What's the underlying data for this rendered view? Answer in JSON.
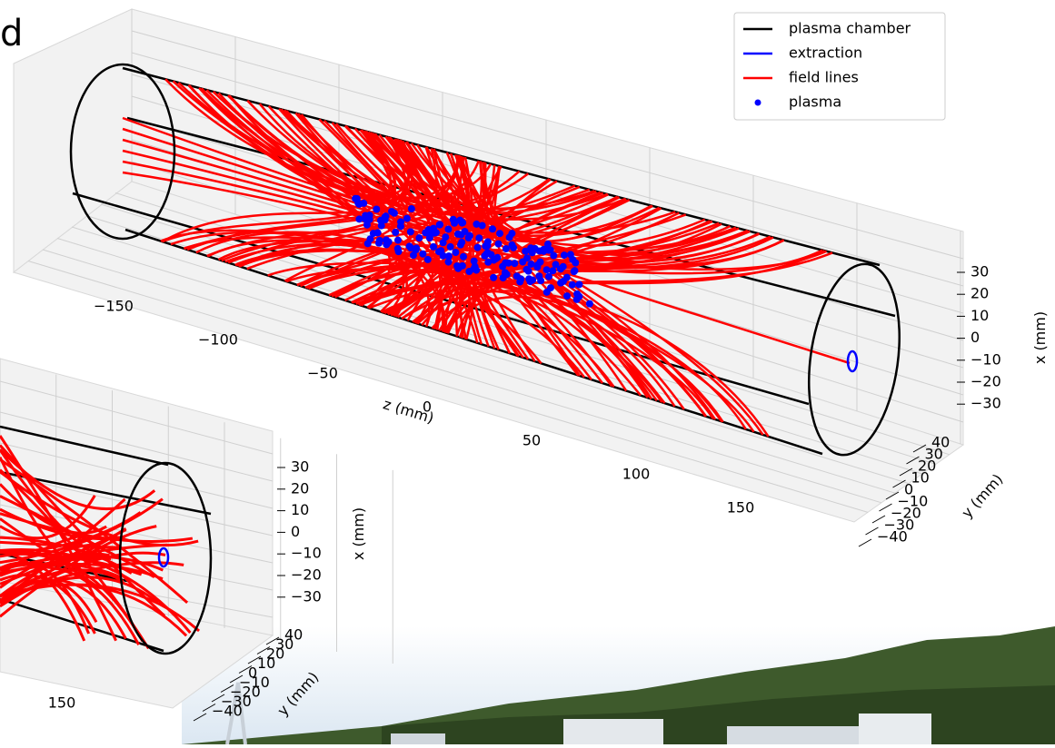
{
  "heading_fragment": "d",
  "main_plot": {
    "legend": [
      {
        "label": "plasma chamber",
        "color": "#000000",
        "kind": "line"
      },
      {
        "label": "extraction",
        "color": "#0000ff",
        "kind": "line"
      },
      {
        "label": "field lines",
        "color": "#ff0000",
        "kind": "line"
      },
      {
        "label": "plasma",
        "color": "#0000ff",
        "kind": "dot"
      }
    ],
    "z_axis": {
      "label": "z (mm)",
      "ticks": [
        "−150",
        "−100",
        "−50",
        "0",
        "50",
        "100",
        "150"
      ]
    },
    "x_axis": {
      "label": "x (mm)",
      "ticks": [
        "30",
        "20",
        "10",
        "0",
        "−10",
        "−20",
        "−30"
      ]
    },
    "y_axis": {
      "label": "y (mm)",
      "ticks": [
        "40",
        "30",
        "20",
        "10",
        "0",
        "−10",
        "−20",
        "−30",
        "−40"
      ]
    }
  },
  "back_plot": {
    "z_axis": {
      "ticks": [
        "150"
      ]
    },
    "x_axis": {
      "label": "x (mm)",
      "ticks": [
        "30",
        "20",
        "10",
        "0",
        "−10",
        "−20",
        "−30"
      ]
    },
    "y_axis": {
      "label": "y (mm)",
      "ticks": [
        "40",
        "30",
        "20",
        "10",
        "0",
        "−10",
        "−20",
        "−30",
        "−40"
      ]
    }
  }
}
